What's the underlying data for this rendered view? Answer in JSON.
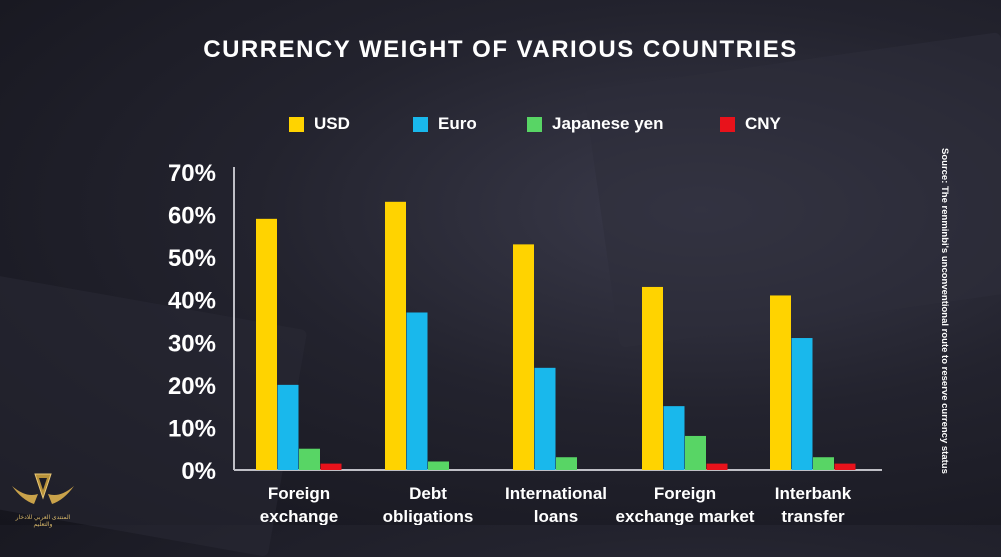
{
  "chart_data": {
    "type": "bar",
    "title": "CURRENCY WEIGHT OF VARIOUS COUNTRIES",
    "categories": [
      "Foreign exchange",
      "Debt obligations",
      "International loans",
      "Foreign exchange market",
      "Interbank transfer"
    ],
    "series": [
      {
        "name": "USD",
        "color": "#ffd300",
        "values": [
          59,
          63,
          53,
          43,
          41
        ]
      },
      {
        "name": "Euro",
        "color": "#19b8ec",
        "values": [
          20,
          37,
          24,
          15,
          31
        ]
      },
      {
        "name": "Japanese yen",
        "color": "#58d565",
        "values": [
          5,
          2,
          3,
          8,
          3
        ]
      },
      {
        "name": "CNY",
        "color": "#e8121b",
        "values": [
          1.5,
          0,
          0,
          1.5,
          1.5
        ]
      }
    ],
    "ylim": [
      0,
      70
    ],
    "yticks": [
      "0%",
      "10%",
      "20%",
      "30%",
      "40%",
      "50%",
      "60%",
      "70%"
    ],
    "xlabel": "",
    "ylabel": "",
    "legend_position": "top",
    "grid": false
  },
  "source_note": "Source: The renminbi's unconventional route to reserve currency status",
  "logo_text": "المنتدى العربي للادخار والتعليم"
}
